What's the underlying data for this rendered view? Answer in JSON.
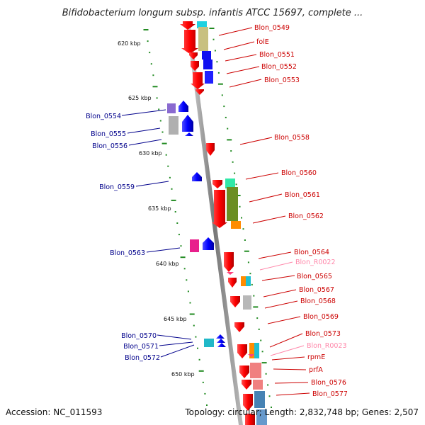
{
  "title": "Bifidobacterium longum subsp. infantis ATCC 15697, complete ...",
  "footer": {
    "accession": "Accession: NC_011593",
    "summary": "Topology: circular; Length: 2,832,748 bp; Genes: 2,507"
  },
  "kbp_ticks": [
    "620 kbp",
    "625 kbp",
    "630 kbp",
    "635 kbp",
    "640 kbp",
    "645 kbp",
    "650 kbp"
  ],
  "left_labels": [
    "Blon_0554",
    "Blon_0555",
    "Blon_0556",
    "Blon_0559",
    "Blon_0563",
    "Blon_0570",
    "Blon_0571",
    "Blon_0572"
  ],
  "right_labels": [
    "Blon_0549",
    "folE",
    "Blon_0551",
    "Blon_0552",
    "Blon_0553",
    "Blon_0558",
    "Blon_0560",
    "Blon_0561",
    "Blon_0562",
    "Blon_0564",
    "Blon_R0022",
    "Blon_0565",
    "Blon_0567",
    "Blon_0568",
    "Blon_0569",
    "Blon_0573",
    "Blon_R0023",
    "rpmE",
    "prfA",
    "Blon_0576",
    "Blon_0577"
  ],
  "colors": {
    "forward": "#ff0000",
    "reverse": "#0000ff",
    "left_label": "#00008b",
    "right_label": "#cc0000",
    "rna_label": "#ff88aa",
    "backbone": "#888888",
    "dots": "#228b22"
  }
}
